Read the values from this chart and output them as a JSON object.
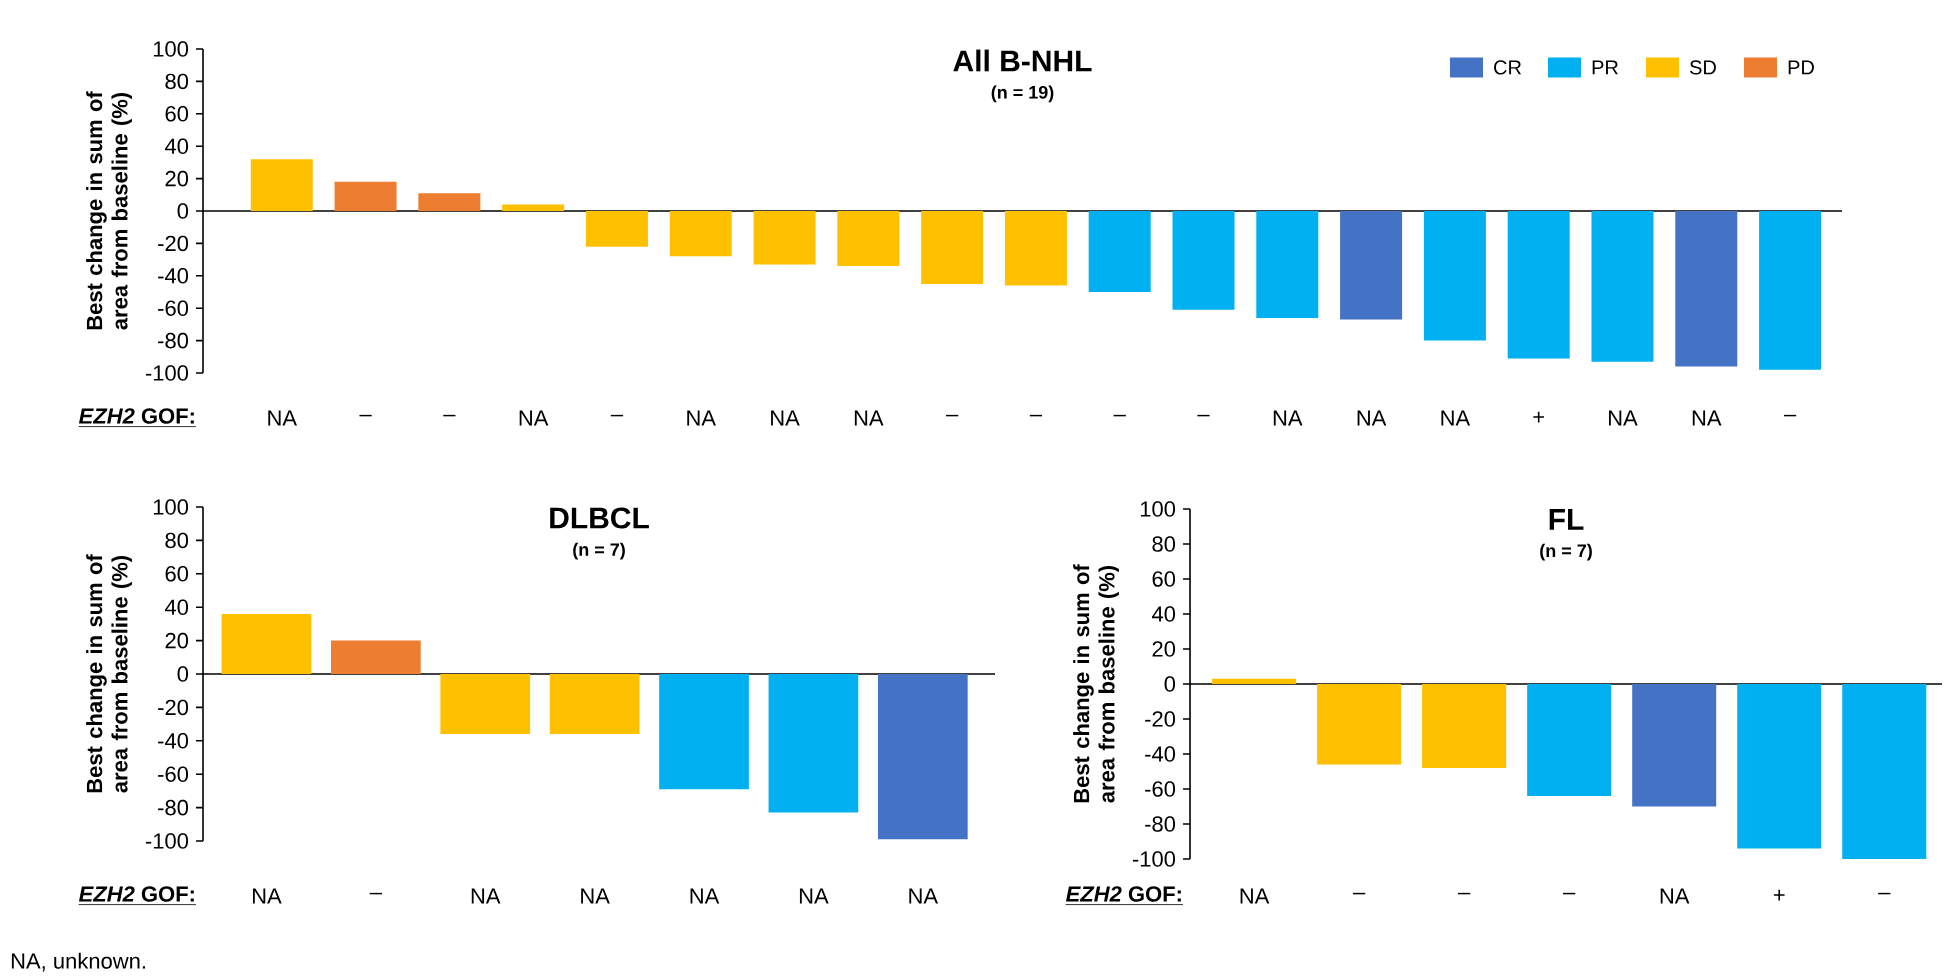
{
  "chart_data": [
    {
      "type": "bar",
      "title": "All B-NHL",
      "subtitle": "(n = 19)",
      "ylabel": "Best change in sum of area from baseline (%)",
      "xlabel": "*EZH2* GOF:",
      "categories": [
        "NA",
        "–",
        "–",
        "NA",
        "–",
        "NA",
        "NA",
        "NA",
        "–",
        "–",
        "–",
        "–",
        "NA",
        "NA",
        "NA",
        "+",
        "NA",
        "NA",
        "–"
      ],
      "series": [
        {
          "name": "CR",
          "color": "#4472c4",
          "values": [
            null,
            null,
            null,
            null,
            null,
            null,
            null,
            null,
            null,
            null,
            null,
            null,
            null,
            -67,
            null,
            null,
            null,
            -96,
            null
          ]
        },
        {
          "name": "PR",
          "color": "#00b0f0",
          "values": [
            null,
            null,
            null,
            null,
            null,
            null,
            null,
            null,
            null,
            null,
            -50,
            -61,
            -66,
            null,
            -80,
            -91,
            -93,
            null,
            -98
          ]
        },
        {
          "name": "SD",
          "color": "#ffc000",
          "values": [
            32,
            null,
            null,
            4,
            -22,
            -28,
            -33,
            -34,
            -45,
            -46,
            null,
            null,
            null,
            null,
            null,
            null,
            null,
            null,
            null
          ]
        },
        {
          "name": "PD",
          "color": "#ed7d31",
          "values": [
            null,
            18,
            11,
            null,
            null,
            null,
            null,
            null,
            null,
            null,
            null,
            null,
            null,
            null,
            null,
            null,
            null,
            null,
            null
          ]
        }
      ],
      "ylim": [
        -100,
        100
      ],
      "yticks": [
        -100,
        -80,
        -60,
        -40,
        -20,
        0,
        20,
        40,
        60,
        80,
        100
      ],
      "legend": "top right"
    },
    {
      "type": "bar",
      "title": "DLBCL",
      "subtitle": "(n = 7)",
      "ylabel": "Best change in sum of area from baseline (%)",
      "xlabel": "*EZH2* GOF:",
      "categories": [
        "NA",
        "–",
        "NA",
        "NA",
        "NA",
        "NA",
        "NA"
      ],
      "values": [
        36,
        20,
        -36,
        -36,
        -69,
        -83,
        -99
      ],
      "colors": [
        "#ffc000",
        "#ed7d31",
        "#ffc000",
        "#ffc000",
        "#00b0f0",
        "#00b0f0",
        "#4472c4"
      ],
      "ylim": [
        -100,
        100
      ],
      "yticks": [
        -100,
        -80,
        -60,
        -40,
        -20,
        0,
        20,
        40,
        60,
        80,
        100
      ],
      "annotations": [
        "NA, unknown."
      ]
    },
    {
      "type": "bar",
      "title": "FL",
      "subtitle": "(n = 7)",
      "ylabel": "Best change in sum of area from baseline (%)",
      "xlabel": "*EZH2* GOF:",
      "categories": [
        "NA",
        "–",
        "–",
        "–",
        "NA",
        "+",
        "–"
      ],
      "values": [
        3,
        -46,
        -48,
        -64,
        -70,
        -94,
        -100
      ],
      "colors": [
        "#ffc000",
        "#ffc000",
        "#ffc000",
        "#00b0f0",
        "#4472c4",
        "#00b0f0",
        "#00b0f0"
      ],
      "ylim": [
        -100,
        100
      ],
      "yticks": [
        -100,
        -80,
        -60,
        -40,
        -20,
        0,
        20,
        40,
        60,
        80,
        100
      ]
    }
  ]
}
